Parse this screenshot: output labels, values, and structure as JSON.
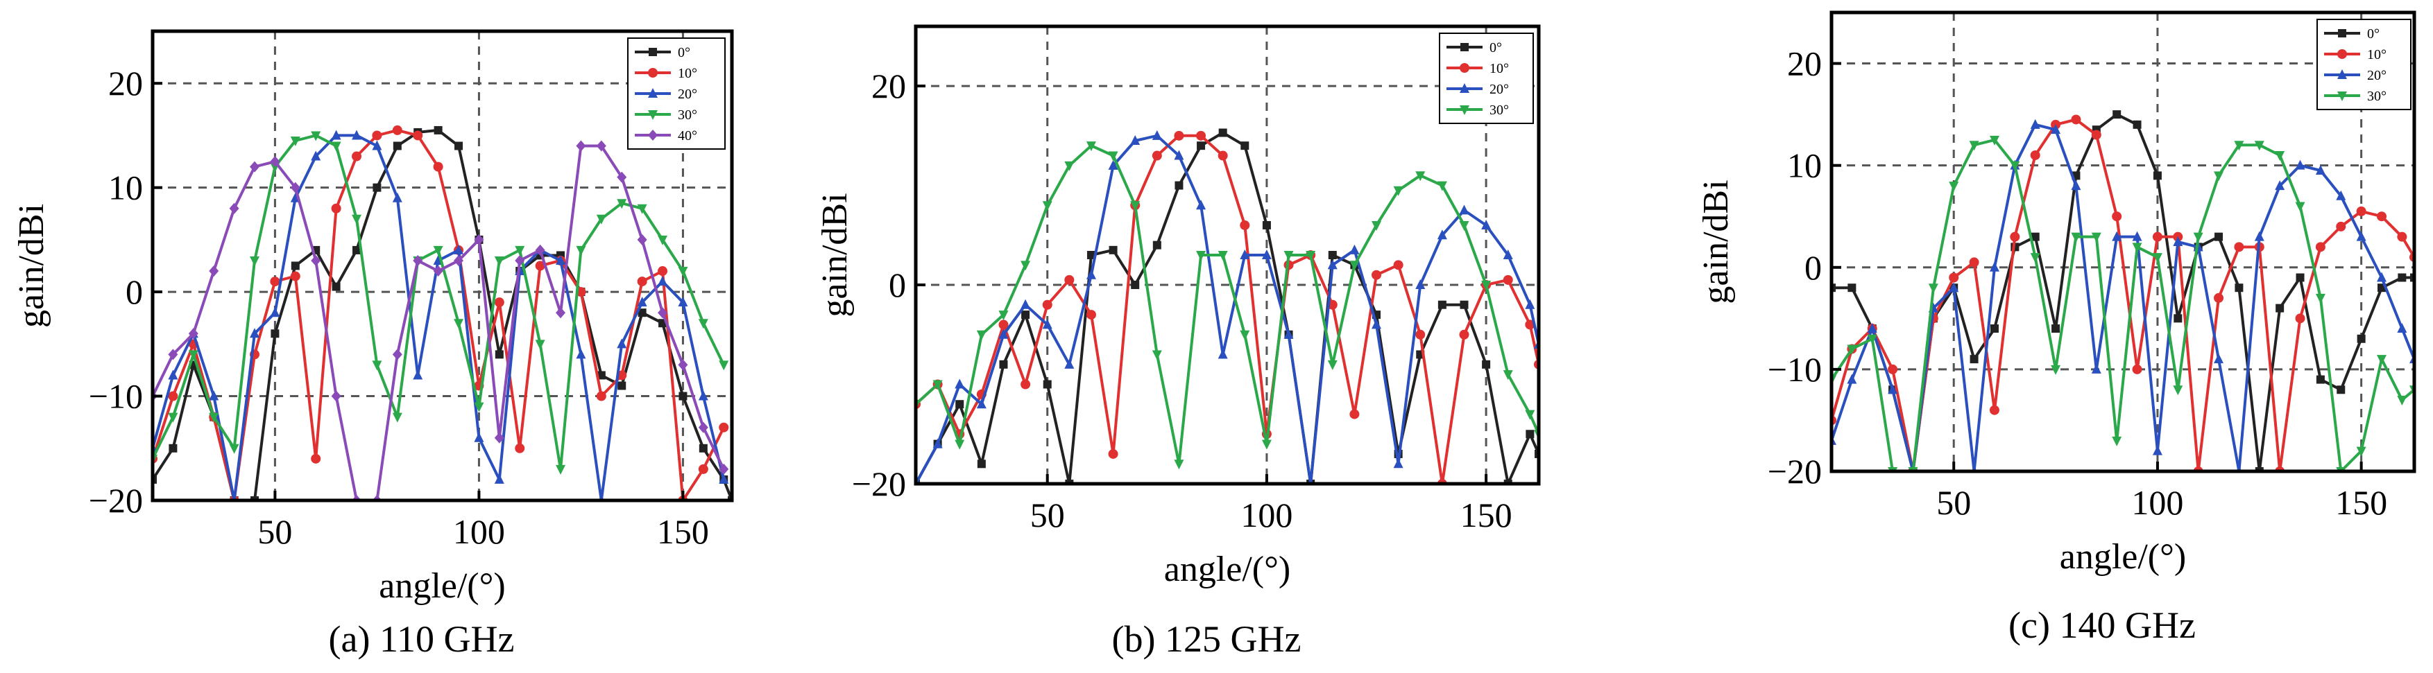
{
  "chart_data": [
    {
      "type": "line",
      "caption": "(a) 110 GHz",
      "xlabel": "angle/(°)",
      "ylabel": "gain/dBi",
      "xlim": [
        20,
        162
      ],
      "ylim": [
        -20,
        25
      ],
      "xticks": [
        50,
        100,
        150
      ],
      "yticks": [
        -20,
        -10,
        0,
        10,
        20
      ],
      "grid": true,
      "legend": "top-right",
      "series": [
        {
          "name": "0°",
          "color": "#222222",
          "marker": "square",
          "x": [
            20,
            25,
            30,
            35,
            40,
            45,
            50,
            55,
            60,
            65,
            70,
            75,
            80,
            85,
            90,
            95,
            100,
            105,
            110,
            115,
            120,
            125,
            130,
            135,
            140,
            145,
            150,
            155,
            160,
            162
          ],
          "y": [
            -18,
            -15,
            -7,
            -12,
            -20,
            -20,
            -4,
            2.5,
            4,
            0.5,
            4,
            10,
            14,
            15.3,
            15.5,
            14,
            5,
            -6,
            2,
            3.5,
            3.5,
            0,
            -8,
            -9,
            -2,
            -3,
            -10,
            -15,
            -18,
            -20
          ]
        },
        {
          "name": "10°",
          "color": "#e03030",
          "marker": "circle",
          "x": [
            20,
            25,
            30,
            35,
            40,
            45,
            50,
            55,
            60,
            65,
            70,
            75,
            80,
            85,
            90,
            95,
            100,
            105,
            110,
            115,
            120,
            125,
            130,
            135,
            140,
            145,
            150,
            155,
            160
          ],
          "y": [
            -16,
            -10,
            -5,
            -12,
            -20,
            -6,
            1,
            1.5,
            -16,
            8,
            13,
            15,
            15.5,
            15,
            12,
            4,
            -9,
            -1,
            -15,
            2.5,
            3,
            0,
            -10,
            -8,
            1,
            2,
            -20,
            -17,
            -13
          ]
        },
        {
          "name": "20°",
          "color": "#2a4fbf",
          "marker": "triangle-up",
          "x": [
            20,
            25,
            30,
            35,
            40,
            45,
            50,
            55,
            60,
            65,
            70,
            75,
            80,
            85,
            90,
            95,
            100,
            105,
            110,
            115,
            120,
            125,
            130,
            135,
            140,
            145,
            150,
            155,
            160
          ],
          "y": [
            -15,
            -8,
            -4,
            -10,
            -20,
            -4,
            -2,
            9,
            13,
            15,
            15,
            14,
            9,
            -8,
            3,
            4,
            -14,
            -18,
            2,
            4,
            3,
            -6,
            -20,
            -5,
            -1,
            1,
            -1,
            -10,
            -18
          ]
        },
        {
          "name": "30°",
          "color": "#2aa84a",
          "marker": "triangle-down",
          "x": [
            20,
            25,
            30,
            35,
            40,
            45,
            50,
            55,
            60,
            65,
            70,
            75,
            80,
            85,
            90,
            95,
            100,
            105,
            110,
            115,
            120,
            125,
            130,
            135,
            140,
            145,
            150,
            155,
            160
          ],
          "y": [
            -16,
            -12,
            -6,
            -12,
            -15,
            3,
            12,
            14.5,
            15,
            14,
            7,
            -7,
            -12,
            3,
            4,
            -3,
            -11,
            3,
            4,
            -5,
            -17,
            4,
            7,
            8.5,
            8,
            5,
            2,
            -3,
            -7
          ]
        },
        {
          "name": "40°",
          "color": "#8a4ab8",
          "marker": "diamond",
          "x": [
            20,
            25,
            30,
            35,
            40,
            45,
            50,
            55,
            60,
            65,
            70,
            75,
            80,
            85,
            90,
            95,
            100,
            105,
            110,
            115,
            120,
            125,
            130,
            135,
            140,
            145,
            150,
            155,
            160
          ],
          "y": [
            -10,
            -6,
            -4,
            2,
            8,
            12,
            12.5,
            10,
            3,
            -10,
            -20,
            -20,
            -6,
            3,
            2,
            3,
            5,
            -14,
            3,
            4,
            -2,
            14,
            14,
            11,
            5,
            -2,
            -7,
            -13,
            -17
          ]
        }
      ]
    },
    {
      "type": "line",
      "caption": "(b) 125 GHz",
      "xlabel": "angle/(°)",
      "ylabel": "gain/dBi",
      "xlim": [
        20,
        162
      ],
      "ylim": [
        -20,
        26
      ],
      "xticks": [
        50,
        100,
        150
      ],
      "yticks": [
        -20,
        0,
        20
      ],
      "grid": true,
      "legend": "top-right",
      "series": [
        {
          "name": "0°",
          "color": "#222222",
          "marker": "square",
          "x": [
            20,
            25,
            30,
            35,
            40,
            45,
            50,
            55,
            60,
            65,
            70,
            75,
            80,
            85,
            90,
            95,
            100,
            105,
            110,
            115,
            120,
            125,
            130,
            135,
            140,
            145,
            150,
            155,
            160,
            162
          ],
          "y": [
            -20,
            -16,
            -12,
            -18,
            -8,
            -3,
            -10,
            -20,
            3,
            3.5,
            0,
            4,
            10,
            14,
            15.3,
            14,
            6,
            -5,
            -20,
            3,
            2,
            -3,
            -17,
            -7,
            -2,
            -2,
            -8,
            -20,
            -15,
            -17
          ]
        },
        {
          "name": "10°",
          "color": "#e03030",
          "marker": "circle",
          "x": [
            20,
            25,
            30,
            35,
            40,
            45,
            50,
            55,
            60,
            65,
            70,
            75,
            80,
            85,
            90,
            95,
            100,
            105,
            110,
            115,
            120,
            125,
            130,
            135,
            140,
            145,
            150,
            155,
            160,
            162
          ],
          "y": [
            -12,
            -10,
            -15,
            -11,
            -4,
            -10,
            -2,
            0.5,
            -3,
            -17,
            8,
            13,
            15,
            15,
            13,
            6,
            -15,
            2,
            3,
            -2,
            -13,
            1,
            2,
            -5,
            -20,
            -5,
            0,
            0.5,
            -4,
            -8
          ]
        },
        {
          "name": "20°",
          "color": "#2a4fbf",
          "marker": "triangle-up",
          "x": [
            20,
            25,
            30,
            35,
            40,
            45,
            50,
            55,
            60,
            65,
            70,
            75,
            80,
            85,
            90,
            95,
            100,
            105,
            110,
            115,
            120,
            125,
            130,
            135,
            140,
            145,
            150,
            155,
            160,
            162
          ],
          "y": [
            -20,
            -16,
            -10,
            -12,
            -5,
            -2,
            -4,
            -8,
            1,
            12,
            14.5,
            15,
            13,
            8,
            -7,
            3,
            3,
            -5,
            -20,
            2,
            3.5,
            -4,
            -18,
            0,
            5,
            7.5,
            6,
            3,
            -2,
            -6
          ]
        },
        {
          "name": "30°",
          "color": "#2aa84a",
          "marker": "triangle-down",
          "x": [
            20,
            25,
            30,
            35,
            40,
            45,
            50,
            55,
            60,
            65,
            70,
            75,
            80,
            85,
            90,
            95,
            100,
            105,
            110,
            115,
            120,
            125,
            130,
            135,
            140,
            145,
            150,
            155,
            160,
            162
          ],
          "y": [
            -12,
            -10,
            -16,
            -5,
            -3,
            2,
            8,
            12,
            14,
            13,
            8,
            -7,
            -18,
            3,
            3,
            -5,
            -16,
            3,
            3,
            -8,
            2,
            6,
            9.5,
            11,
            10,
            6,
            0,
            -9,
            -13,
            -15
          ]
        }
      ]
    },
    {
      "type": "line",
      "caption": "(c) 140 GHz",
      "xlabel": "angle/(°)",
      "ylabel": "gain/dBi",
      "xlim": [
        20,
        163
      ],
      "ylim": [
        -20,
        25
      ],
      "xticks": [
        50,
        100,
        150
      ],
      "yticks": [
        -20,
        -10,
        0,
        10,
        20
      ],
      "grid": true,
      "legend": "top-right",
      "series": [
        {
          "name": "0°",
          "color": "#222222",
          "marker": "square",
          "x": [
            20,
            25,
            30,
            35,
            40,
            45,
            50,
            55,
            60,
            65,
            70,
            75,
            80,
            85,
            90,
            95,
            100,
            105,
            110,
            115,
            120,
            125,
            130,
            135,
            140,
            145,
            150,
            155,
            160,
            163
          ],
          "y": [
            -2,
            -2,
            -6,
            -12,
            -20,
            -5,
            -2,
            -9,
            -6,
            2,
            3,
            -6,
            9,
            13.5,
            15,
            14,
            9,
            -5,
            2,
            3,
            -2,
            -20,
            -4,
            -1,
            -11,
            -12,
            -7,
            -2,
            -1,
            -1
          ]
        },
        {
          "name": "10°",
          "color": "#e03030",
          "marker": "circle",
          "x": [
            20,
            25,
            30,
            35,
            40,
            45,
            50,
            55,
            60,
            65,
            70,
            75,
            80,
            85,
            90,
            95,
            100,
            105,
            110,
            115,
            120,
            125,
            130,
            135,
            140,
            145,
            150,
            155,
            160,
            163
          ],
          "y": [
            -15,
            -8,
            -6,
            -10,
            -20,
            -5,
            -1,
            0.5,
            -14,
            3,
            11,
            14,
            14.5,
            13,
            5,
            -10,
            3,
            3,
            -20,
            -3,
            2,
            2,
            -20,
            -5,
            2,
            4,
            5.5,
            5,
            3,
            1
          ]
        },
        {
          "name": "20°",
          "color": "#2a4fbf",
          "marker": "triangle-up",
          "x": [
            20,
            25,
            30,
            35,
            40,
            45,
            50,
            55,
            60,
            65,
            70,
            75,
            80,
            85,
            90,
            95,
            100,
            105,
            110,
            115,
            120,
            125,
            130,
            135,
            140,
            145,
            150,
            155,
            160,
            163
          ],
          "y": [
            -17,
            -11,
            -6,
            -12,
            -20,
            -4,
            -2,
            -20,
            0,
            10,
            14,
            13.5,
            8,
            -10,
            3,
            3,
            -18,
            2.5,
            2,
            -9,
            -20,
            3,
            8,
            10,
            9.5,
            7,
            3,
            -1,
            -6,
            -9
          ]
        },
        {
          "name": "30°",
          "color": "#2aa84a",
          "marker": "triangle-down",
          "x": [
            20,
            25,
            30,
            35,
            40,
            45,
            50,
            55,
            60,
            65,
            70,
            75,
            80,
            85,
            90,
            95,
            100,
            105,
            110,
            115,
            120,
            125,
            130,
            135,
            140,
            145,
            150,
            155,
            160,
            163
          ],
          "y": [
            -11,
            -8,
            -7,
            -20,
            -20,
            -2,
            8,
            12,
            12.5,
            10,
            1,
            -10,
            3,
            3,
            -17,
            2,
            1,
            -12,
            3,
            9,
            12,
            12,
            11,
            6,
            -3,
            -20,
            -18,
            -9,
            -13,
            -12
          ]
        }
      ]
    }
  ]
}
